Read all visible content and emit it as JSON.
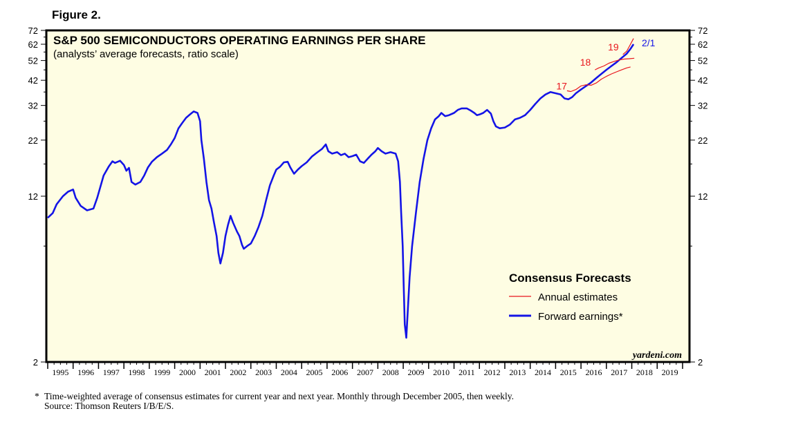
{
  "figure_label": "Figure 2.",
  "footnote": {
    "marker": "*",
    "line1": "Time-weighted average of consensus estimates for current year and next year. Monthly through December 2005, then weekly.",
    "line2": "Source: Thomson Reuters I/B/E/S."
  },
  "chart_data": {
    "type": "line",
    "title": "S&P 500 SEMICONDUCTORS OPERATING EARNINGS PER SHARE",
    "subtitle": "(analysts’ average forecasts, ratio scale)",
    "y_scale": "log",
    "ylim": [
      2,
      72
    ],
    "y_ticks": [
      2,
      12,
      22,
      32,
      42,
      52,
      62,
      72
    ],
    "y_tick_labels": [
      "2",
      "12",
      "22",
      "32",
      "42",
      "52",
      "62",
      "72"
    ],
    "x_range": [
      1995,
      2020
    ],
    "x_labels": [
      "1995",
      "1996",
      "1997",
      "1998",
      "1999",
      "2000",
      "2001",
      "2002",
      "2003",
      "2004",
      "2005",
      "2006",
      "2007",
      "2008",
      "2009",
      "2010",
      "2011",
      "2012",
      "2013",
      "2014",
      "2015",
      "2016",
      "2017",
      "2018",
      "2019"
    ],
    "watermark": "yardeni.com",
    "date_annotation": "2/1",
    "legend": {
      "title": "Consensus Forecasts",
      "items": [
        {
          "label": "Annual estimates",
          "color": "#e8141c"
        },
        {
          "label": "Forward earnings*",
          "color": "#1414e6"
        }
      ]
    },
    "series": [
      {
        "name": "Forward earnings*",
        "color": "#1414e6",
        "points": [
          [
            1995.0,
            9.5
          ],
          [
            1995.2,
            10.0
          ],
          [
            1995.35,
            11.0
          ],
          [
            1995.6,
            12.0
          ],
          [
            1995.8,
            12.6
          ],
          [
            1996.0,
            12.9
          ],
          [
            1996.1,
            11.8
          ],
          [
            1996.3,
            10.8
          ],
          [
            1996.55,
            10.3
          ],
          [
            1996.8,
            10.5
          ],
          [
            1996.95,
            11.8
          ],
          [
            1997.2,
            15.0
          ],
          [
            1997.4,
            16.5
          ],
          [
            1997.55,
            17.5
          ],
          [
            1997.65,
            17.2
          ],
          [
            1997.85,
            17.6
          ],
          [
            1998.0,
            16.8
          ],
          [
            1998.1,
            15.8
          ],
          [
            1998.2,
            16.3
          ],
          [
            1998.3,
            14.0
          ],
          [
            1998.45,
            13.6
          ],
          [
            1998.65,
            14.0
          ],
          [
            1998.8,
            15.0
          ],
          [
            1998.95,
            16.4
          ],
          [
            1999.1,
            17.4
          ],
          [
            1999.3,
            18.3
          ],
          [
            1999.5,
            19.0
          ],
          [
            1999.7,
            19.8
          ],
          [
            1999.85,
            21.0
          ],
          [
            2000.0,
            22.5
          ],
          [
            2000.15,
            25.0
          ],
          [
            2000.3,
            26.5
          ],
          [
            2000.45,
            28.0
          ],
          [
            2000.6,
            29.0
          ],
          [
            2000.75,
            30.0
          ],
          [
            2000.9,
            29.5
          ],
          [
            2001.0,
            27.0
          ],
          [
            2001.05,
            22.0
          ],
          [
            2001.15,
            18.0
          ],
          [
            2001.25,
            14.0
          ],
          [
            2001.35,
            11.5
          ],
          [
            2001.45,
            10.5
          ],
          [
            2001.55,
            9.0
          ],
          [
            2001.65,
            7.8
          ],
          [
            2001.72,
            6.5
          ],
          [
            2001.8,
            5.8
          ],
          [
            2001.9,
            6.5
          ],
          [
            2002.0,
            7.8
          ],
          [
            2002.1,
            8.8
          ],
          [
            2002.2,
            9.7
          ],
          [
            2002.3,
            9.0
          ],
          [
            2002.45,
            8.2
          ],
          [
            2002.55,
            7.8
          ],
          [
            2002.65,
            7.1
          ],
          [
            2002.72,
            6.8
          ],
          [
            2002.85,
            7.0
          ],
          [
            2003.0,
            7.2
          ],
          [
            2003.15,
            7.8
          ],
          [
            2003.3,
            8.6
          ],
          [
            2003.45,
            9.7
          ],
          [
            2003.6,
            11.5
          ],
          [
            2003.75,
            13.5
          ],
          [
            2003.9,
            15.0
          ],
          [
            2004.0,
            16.0
          ],
          [
            2004.15,
            16.5
          ],
          [
            2004.3,
            17.3
          ],
          [
            2004.45,
            17.4
          ],
          [
            2004.55,
            16.4
          ],
          [
            2004.7,
            15.3
          ],
          [
            2004.85,
            16.0
          ],
          [
            2005.0,
            16.6
          ],
          [
            2005.2,
            17.3
          ],
          [
            2005.4,
            18.4
          ],
          [
            2005.6,
            19.2
          ],
          [
            2005.8,
            20.0
          ],
          [
            2005.95,
            21.0
          ],
          [
            2006.05,
            19.5
          ],
          [
            2006.2,
            19.0
          ],
          [
            2006.4,
            19.3
          ],
          [
            2006.55,
            18.7
          ],
          [
            2006.7,
            19.0
          ],
          [
            2006.85,
            18.3
          ],
          [
            2007.0,
            18.5
          ],
          [
            2007.15,
            18.8
          ],
          [
            2007.3,
            17.5
          ],
          [
            2007.45,
            17.2
          ],
          [
            2007.6,
            18.0
          ],
          [
            2007.75,
            18.8
          ],
          [
            2007.9,
            19.5
          ],
          [
            2008.0,
            20.2
          ],
          [
            2008.15,
            19.5
          ],
          [
            2008.3,
            19.0
          ],
          [
            2008.5,
            19.3
          ],
          [
            2008.7,
            19.0
          ],
          [
            2008.8,
            17.5
          ],
          [
            2008.87,
            14.0
          ],
          [
            2008.92,
            10.0
          ],
          [
            2008.98,
            7.0
          ],
          [
            2009.02,
            4.5
          ],
          [
            2009.06,
            3.0
          ],
          [
            2009.12,
            2.6
          ],
          [
            2009.18,
            3.5
          ],
          [
            2009.25,
            5.0
          ],
          [
            2009.35,
            7.0
          ],
          [
            2009.5,
            10.0
          ],
          [
            2009.65,
            14.0
          ],
          [
            2009.8,
            18.0
          ],
          [
            2009.95,
            22.0
          ],
          [
            2010.1,
            25.0
          ],
          [
            2010.25,
            27.5
          ],
          [
            2010.4,
            28.5
          ],
          [
            2010.5,
            29.5
          ],
          [
            2010.65,
            28.5
          ],
          [
            2010.8,
            28.8
          ],
          [
            2011.0,
            29.5
          ],
          [
            2011.15,
            30.5
          ],
          [
            2011.3,
            31.0
          ],
          [
            2011.5,
            31.0
          ],
          [
            2011.65,
            30.3
          ],
          [
            2011.8,
            29.5
          ],
          [
            2011.9,
            28.8
          ],
          [
            2012.0,
            29.0
          ],
          [
            2012.15,
            29.5
          ],
          [
            2012.3,
            30.5
          ],
          [
            2012.45,
            29.3
          ],
          [
            2012.55,
            27.0
          ],
          [
            2012.65,
            25.5
          ],
          [
            2012.8,
            25.0
          ],
          [
            2013.0,
            25.2
          ],
          [
            2013.2,
            26.0
          ],
          [
            2013.4,
            27.5
          ],
          [
            2013.6,
            28.0
          ],
          [
            2013.8,
            28.8
          ],
          [
            2014.0,
            30.5
          ],
          [
            2014.2,
            32.5
          ],
          [
            2014.4,
            34.5
          ],
          [
            2014.6,
            36.0
          ],
          [
            2014.8,
            37.0
          ],
          [
            2015.0,
            36.5
          ],
          [
            2015.2,
            36.0
          ],
          [
            2015.35,
            34.5
          ],
          [
            2015.5,
            34.2
          ],
          [
            2015.65,
            35.0
          ],
          [
            2015.8,
            36.5
          ],
          [
            2016.0,
            38.0
          ],
          [
            2016.2,
            39.5
          ],
          [
            2016.4,
            41.0
          ],
          [
            2016.6,
            43.0
          ],
          [
            2016.8,
            45.0
          ],
          [
            2017.0,
            47.0
          ],
          [
            2017.2,
            49.0
          ],
          [
            2017.4,
            51.0
          ],
          [
            2017.6,
            53.5
          ],
          [
            2017.8,
            56.0
          ],
          [
            2017.95,
            59.0
          ],
          [
            2018.07,
            62.0
          ]
        ]
      },
      {
        "name": "2017 estimate",
        "color": "#e8141c",
        "label": "17",
        "points": [
          [
            2015.45,
            37.5
          ],
          [
            2015.6,
            37.2
          ],
          [
            2015.8,
            38.0
          ],
          [
            2016.0,
            39.5
          ],
          [
            2016.2,
            40.0
          ],
          [
            2016.4,
            39.8
          ],
          [
            2016.6,
            40.8
          ],
          [
            2016.8,
            42.5
          ],
          [
            2017.0,
            43.8
          ],
          [
            2017.2,
            45.0
          ],
          [
            2017.4,
            46.0
          ],
          [
            2017.6,
            47.0
          ],
          [
            2017.8,
            48.0
          ],
          [
            2017.95,
            48.5
          ]
        ]
      },
      {
        "name": "2018 estimate",
        "color": "#e8141c",
        "label": "18",
        "points": [
          [
            2016.55,
            47.0
          ],
          [
            2016.7,
            48.0
          ],
          [
            2016.9,
            49.0
          ],
          [
            2017.1,
            50.5
          ],
          [
            2017.3,
            51.5
          ],
          [
            2017.5,
            52.3
          ],
          [
            2017.7,
            52.8
          ],
          [
            2017.9,
            53.0
          ],
          [
            2018.1,
            53.3
          ]
        ]
      },
      {
        "name": "2019 estimate",
        "color": "#e8141c",
        "label": "19",
        "points": [
          [
            2017.65,
            55.5
          ],
          [
            2017.8,
            57.5
          ],
          [
            2017.95,
            62.0
          ],
          [
            2018.07,
            66.0
          ]
        ]
      }
    ]
  }
}
